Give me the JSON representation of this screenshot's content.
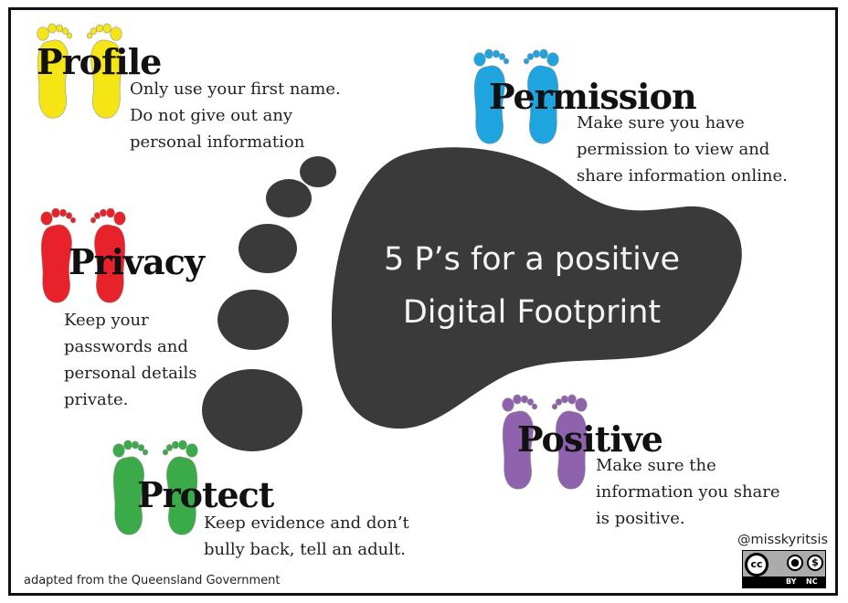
{
  "center": {
    "line1": "5 P’s for a positive",
    "line2": "Digital  Footprint"
  },
  "sections": {
    "profile": {
      "title": "Profile",
      "lines": [
        "Only use your first name.",
        "Do not give out any",
        "personal information"
      ],
      "color": "#f5e514"
    },
    "permission": {
      "title": "Permission",
      "lines": [
        "Make sure you have",
        "permission to view and",
        "share information online."
      ],
      "color": "#1ea4df"
    },
    "privacy": {
      "title": "Privacy",
      "lines": [
        "Keep your",
        "passwords and",
        "personal details",
        "private."
      ],
      "color": "#e8222b"
    },
    "positive": {
      "title": "Positive",
      "lines": [
        "Make sure the",
        "information you share",
        "is positive."
      ],
      "color": "#8e62ad"
    },
    "protect": {
      "title": "Protect",
      "lines": [
        "Keep evidence and don’t",
        "bully back, tell an adult."
      ],
      "color": "#3bab49"
    }
  },
  "footer": {
    "credit": "adapted from the Queensland Government",
    "handle": "@misskyritsis",
    "license": {
      "cc": "cc",
      "by": "BY",
      "nc": "NC"
    }
  },
  "footprint_color": "#3a3a3a"
}
